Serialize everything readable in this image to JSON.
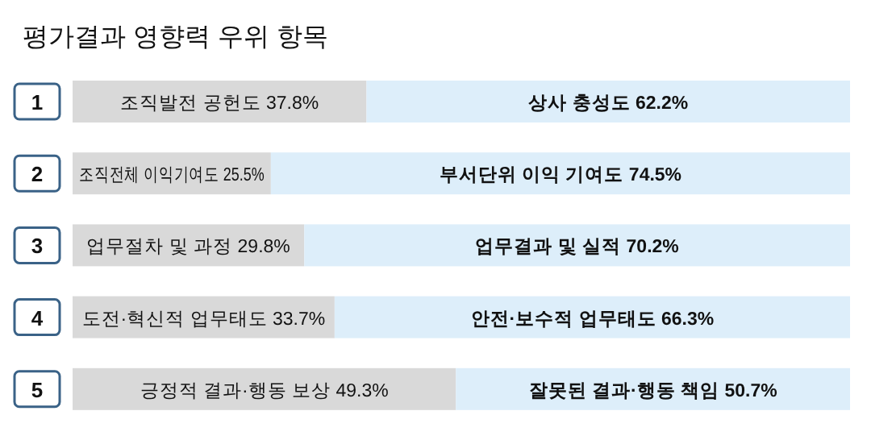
{
  "chart_data": {
    "type": "bar",
    "orientation": "horizontal",
    "stacked": true,
    "title": "평가결과 영향력 우위 항목",
    "categories": [
      "1",
      "2",
      "3",
      "4",
      "5"
    ],
    "series": [
      {
        "color": "#d9d9d9",
        "values": [
          37.8,
          25.5,
          29.8,
          33.7,
          49.3
        ],
        "value_labels": [
          "조직발전 공헌도 37.8%",
          "조직전체 이익기여도 25.5%",
          "업무절차 및 과정 29.8%",
          "도전·혁신적 업무태도 33.7%",
          "긍정적 결과·행동 보상 49.3%"
        ]
      },
      {
        "color": "#ddeefa",
        "values": [
          62.2,
          74.5,
          70.2,
          66.3,
          50.7
        ],
        "value_labels": [
          "상사 충성도 62.2%",
          "부서단위 이익 기여도 74.5%",
          "업무결과 및 실적 70.2%",
          "안전·보수적 업무태도 66.3%",
          "잘못된 결과·행동 책임 50.7%"
        ]
      }
    ]
  }
}
